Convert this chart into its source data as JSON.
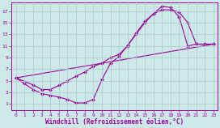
{
  "title": "",
  "xlabel": "Windchill (Refroidissement éolien,°C)",
  "ylabel": "",
  "bg_color": "#cce8e8",
  "line_color": "#990099",
  "grid_color": "#aacccc",
  "xlim": [
    -0.5,
    23.5
  ],
  "ylim": [
    0,
    18.5
  ],
  "xticks": [
    0,
    1,
    2,
    3,
    4,
    5,
    6,
    7,
    8,
    9,
    10,
    11,
    12,
    13,
    14,
    15,
    16,
    17,
    18,
    19,
    20,
    21,
    22,
    23
  ],
  "yticks": [
    1,
    3,
    5,
    7,
    9,
    11,
    13,
    15,
    17
  ],
  "line1_x": [
    0,
    1,
    2,
    3,
    4,
    5,
    6,
    7,
    8,
    9,
    10,
    11,
    12,
    13,
    14,
    15,
    16,
    17,
    18,
    19,
    20,
    21,
    22,
    23
  ],
  "line1_y": [
    5.5,
    4.5,
    3.5,
    2.8,
    2.5,
    2.2,
    1.8,
    1.2,
    1.2,
    1.8,
    5.2,
    8.0,
    9.2,
    11.1,
    13.0,
    15.0,
    16.5,
    17.8,
    17.6,
    16.0,
    11.0,
    11.3,
    11.3,
    11.3
  ],
  "line2_x": [
    0,
    2,
    3,
    4,
    5,
    6,
    7,
    8,
    9,
    10,
    11,
    12,
    13,
    14,
    15,
    16,
    17,
    18,
    19,
    20,
    21,
    22,
    23
  ],
  "line2_y": [
    5.5,
    4.3,
    3.5,
    3.5,
    4.2,
    5.0,
    5.8,
    6.5,
    7.5,
    8.0,
    9.0,
    9.5,
    11.0,
    13.2,
    15.2,
    16.5,
    17.2,
    17.2,
    16.8,
    15.0,
    11.3,
    11.3,
    11.3
  ],
  "line3_x": [
    0,
    23
  ],
  "line3_y": [
    5.5,
    11.3
  ]
}
